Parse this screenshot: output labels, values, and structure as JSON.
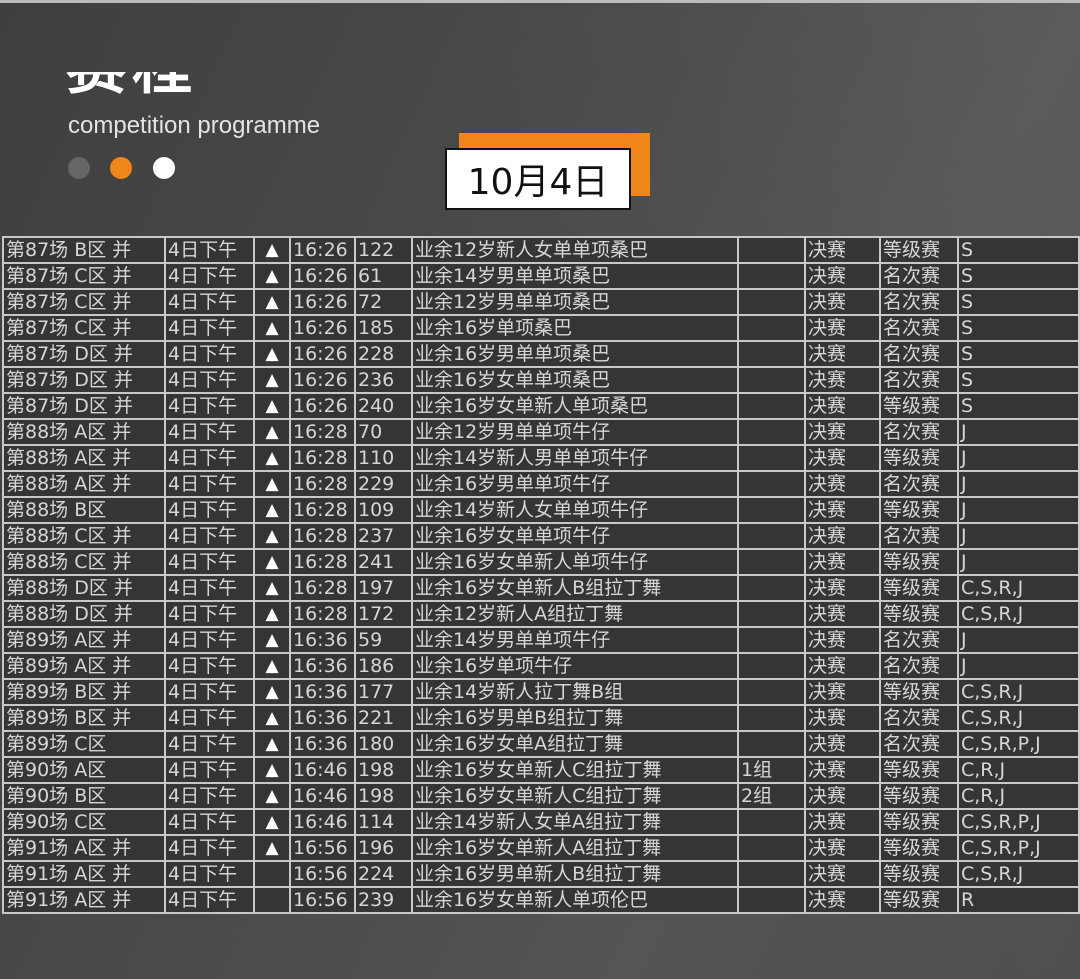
{
  "header": {
    "title": "赛程",
    "subtitle": "competition programme",
    "date": "10月4日",
    "colors": {
      "accent": "#f08519",
      "dot_inactive": "#666666",
      "dot_white": "#ffffff"
    }
  },
  "table": {
    "rows": [
      [
        "第87场 B区 并",
        "4日下午",
        "▲",
        "16:26",
        "122",
        "业余12岁新人女单单项桑巴",
        "",
        "决赛",
        "等级赛",
        "S"
      ],
      [
        "第87场 C区 并",
        "4日下午",
        "▲",
        "16:26",
        "61",
        "业余14岁男单单项桑巴",
        "",
        "决赛",
        "名次赛",
        "S"
      ],
      [
        "第87场 C区 并",
        "4日下午",
        "▲",
        "16:26",
        "72",
        "业余12岁男单单项桑巴",
        "",
        "决赛",
        "名次赛",
        "S"
      ],
      [
        "第87场 C区 并",
        "4日下午",
        "▲",
        "16:26",
        "185",
        "业余16岁单项桑巴",
        "",
        "决赛",
        "名次赛",
        "S"
      ],
      [
        "第87场 D区 并",
        "4日下午",
        "▲",
        "16:26",
        "228",
        "业余16岁男单单项桑巴",
        "",
        "决赛",
        "名次赛",
        "S"
      ],
      [
        "第87场 D区 并",
        "4日下午",
        "▲",
        "16:26",
        "236",
        "业余16岁女单单项桑巴",
        "",
        "决赛",
        "名次赛",
        "S"
      ],
      [
        "第87场 D区 并",
        "4日下午",
        "▲",
        "16:26",
        "240",
        "业余16岁女单新人单项桑巴",
        "",
        "决赛",
        "等级赛",
        "S"
      ],
      [
        "第88场 A区 并",
        "4日下午",
        "▲",
        "16:28",
        "70",
        "业余12岁男单单项牛仔",
        "",
        "决赛",
        "名次赛",
        "J"
      ],
      [
        "第88场 A区 并",
        "4日下午",
        "▲",
        "16:28",
        "110",
        "业余14岁新人男单单项牛仔",
        "",
        "决赛",
        "等级赛",
        "J"
      ],
      [
        "第88场 A区 并",
        "4日下午",
        "▲",
        "16:28",
        "229",
        "业余16岁男单单项牛仔",
        "",
        "决赛",
        "名次赛",
        "J"
      ],
      [
        "第88场 B区",
        "4日下午",
        "▲",
        "16:28",
        "109",
        "业余14岁新人女单单项牛仔",
        "",
        "决赛",
        "等级赛",
        "J"
      ],
      [
        "第88场 C区 并",
        "4日下午",
        "▲",
        "16:28",
        "237",
        "业余16岁女单单项牛仔",
        "",
        "决赛",
        "名次赛",
        "J"
      ],
      [
        "第88场 C区 并",
        "4日下午",
        "▲",
        "16:28",
        "241",
        "业余16岁女单新人单项牛仔",
        "",
        "决赛",
        "等级赛",
        "J"
      ],
      [
        "第88场 D区 并",
        "4日下午",
        "▲",
        "16:28",
        "197",
        "业余16岁女单新人B组拉丁舞",
        "",
        "决赛",
        "等级赛",
        "C,S,R,J"
      ],
      [
        "第88场 D区 并",
        "4日下午",
        "▲",
        "16:28",
        "172",
        "业余12岁新人A组拉丁舞",
        "",
        "决赛",
        "等级赛",
        "C,S,R,J"
      ],
      [
        "第89场 A区 并",
        "4日下午",
        "▲",
        "16:36",
        "59",
        "业余14岁男单单项牛仔",
        "",
        "决赛",
        "名次赛",
        "J"
      ],
      [
        "第89场 A区 并",
        "4日下午",
        "▲",
        "16:36",
        "186",
        "业余16岁单项牛仔",
        "",
        "决赛",
        "名次赛",
        "J"
      ],
      [
        "第89场 B区 并",
        "4日下午",
        "▲",
        "16:36",
        "177",
        "业余14岁新人拉丁舞B组",
        "",
        "决赛",
        "等级赛",
        "C,S,R,J"
      ],
      [
        "第89场 B区 并",
        "4日下午",
        "▲",
        "16:36",
        "221",
        "业余16岁男单B组拉丁舞",
        "",
        "决赛",
        "名次赛",
        "C,S,R,J"
      ],
      [
        "第89场 C区",
        "4日下午",
        "▲",
        "16:36",
        "180",
        "业余16岁女单A组拉丁舞",
        "",
        "决赛",
        "名次赛",
        "C,S,R,P,J"
      ],
      [
        "第90场 A区",
        "4日下午",
        "▲",
        "16:46",
        "198",
        "业余16岁女单新人C组拉丁舞",
        "1组",
        "决赛",
        "等级赛",
        "C,R,J"
      ],
      [
        "第90场 B区",
        "4日下午",
        "▲",
        "16:46",
        "198",
        "业余16岁女单新人C组拉丁舞",
        "2组",
        "决赛",
        "等级赛",
        "C,R,J"
      ],
      [
        "第90场 C区",
        "4日下午",
        "▲",
        "16:46",
        "114",
        "业余14岁新人女单A组拉丁舞",
        "",
        "决赛",
        "等级赛",
        "C,S,R,P,J"
      ],
      [
        "第91场 A区 并",
        "4日下午",
        "▲",
        "16:56",
        "196",
        "业余16岁女单新人A组拉丁舞",
        "",
        "决赛",
        "等级赛",
        "C,S,R,P,J"
      ],
      [
        "第91场 A区 并",
        "4日下午",
        "",
        "16:56",
        "224",
        "业余16岁男单新人B组拉丁舞",
        "",
        "决赛",
        "等级赛",
        "C,S,R,J"
      ],
      [
        "第91场 A区 并",
        "4日下午",
        "",
        "16:56",
        "239",
        "业余16岁女单新人单项伦巴",
        "",
        "决赛",
        "等级赛",
        "R"
      ]
    ]
  }
}
